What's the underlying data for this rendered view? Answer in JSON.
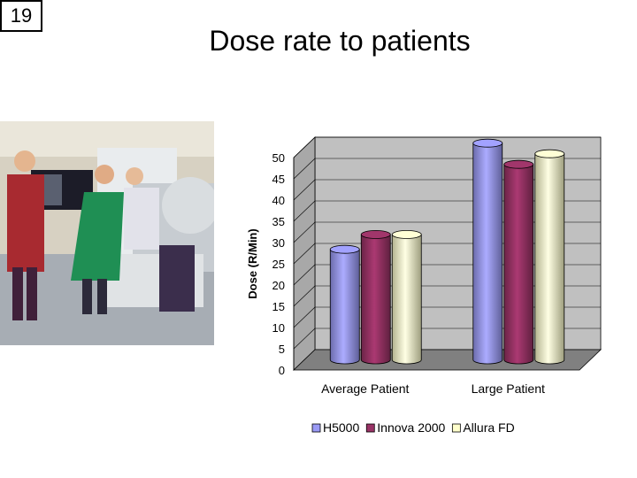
{
  "slide_number": "19",
  "title": "Dose rate to patients",
  "photo": {
    "icon": "photo-icon"
  },
  "chart_data": {
    "type": "bar",
    "three_d": true,
    "title": "",
    "xlabel": "",
    "ylabel": "Dose (R/Min)",
    "ylim": [
      0,
      50
    ],
    "yticks": [
      0,
      5,
      10,
      15,
      20,
      25,
      30,
      35,
      40,
      45,
      50
    ],
    "grid": true,
    "legend_position": "bottom",
    "categories": [
      "Average Patient",
      "Large Patient"
    ],
    "series": [
      {
        "name": "H5000",
        "values": [
          26,
          51
        ],
        "color": "#9a9af5"
      },
      {
        "name": "Innova 2000",
        "values": [
          29.5,
          46
        ],
        "color": "#993366"
      },
      {
        "name": "Allura FD",
        "values": [
          29.5,
          48.5
        ],
        "color": "#ffffcc"
      }
    ],
    "wall_color": "#c0c0c0",
    "floor_color": "#808080"
  }
}
